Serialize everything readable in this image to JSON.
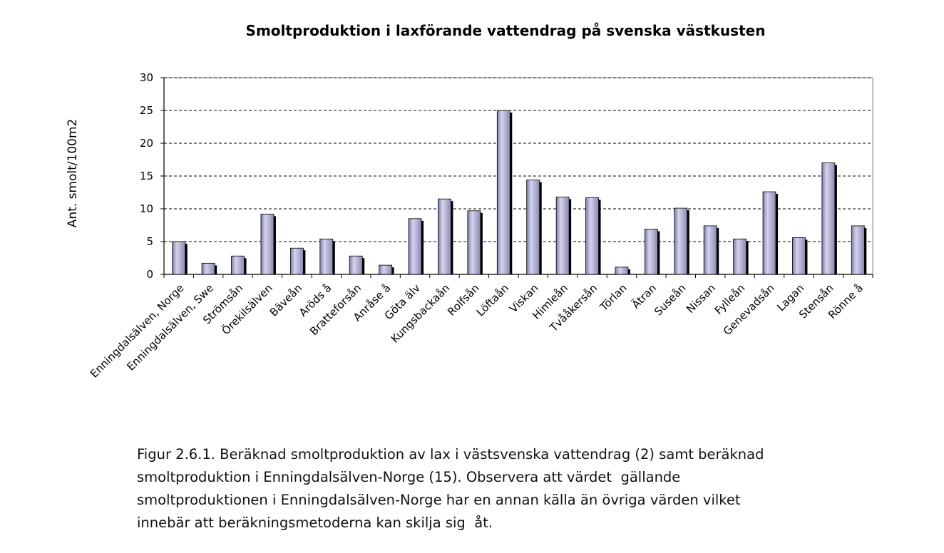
{
  "chart_data": {
    "type": "bar",
    "title": "Smoltproduktion i laxförande vattendrag på svenska västkusten",
    "xlabel": "",
    "ylabel": "Ant. smolt/100m2",
    "ylim": [
      0,
      30
    ],
    "yticks": [
      0,
      5,
      10,
      15,
      20,
      25,
      30
    ],
    "grid": true,
    "categories": [
      "Enningdalsälven, Norge",
      "Enningdalsälven, Swe",
      "Strömsån",
      "Örekilsälven",
      "Bäveån",
      "Aröds å",
      "Bratteforsån",
      "Anråse å",
      "Göta älv",
      "Kungsbackaån",
      "Rolfsån",
      "Löftaån",
      "Viskan",
      "Himleån",
      "Tvååkersån",
      "Törlan",
      "Ätran",
      "Suseån",
      "Nissan",
      "Fylleån",
      "Genevadsån",
      "Lagan",
      "Stensån",
      "Rönne å"
    ],
    "values": [
      5.0,
      1.7,
      2.8,
      9.2,
      4.0,
      5.4,
      2.8,
      1.4,
      8.5,
      11.5,
      9.7,
      25.0,
      14.4,
      11.8,
      11.7,
      1.1,
      6.9,
      10.1,
      7.4,
      5.4,
      12.6,
      5.6,
      17.0,
      7.4
    ],
    "bar_color": "#9fa0c8",
    "bar_shadow_color": "#000000"
  },
  "caption": {
    "lines": [
      "Figur 2.6.1. Beräknad smoltproduktion av lax i västsvenska vattendrag (2) samt beräknad",
      "smoltproduktion i Enningdalsälven-Norge (15). Observera att värdet  gällande",
      "smoltproduktionen i Enningdalsälven-Norge har en annan källa än övriga värden vilket",
      "innebär att beräkningsmetoderna kan skilja sig  åt."
    ]
  }
}
